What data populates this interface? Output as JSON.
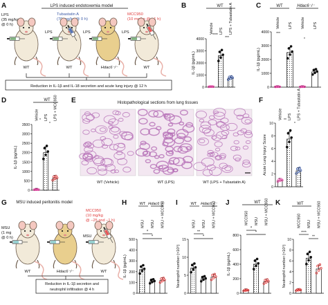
{
  "colors": {
    "red": "#e03a3a",
    "blue": "#3b5aa6",
    "pink": "#e64aa6",
    "black": "#111111",
    "tissue_bg": "#f3e7f1",
    "tissue_stain": "#b56fb6"
  },
  "panelA": {
    "letter": "A",
    "title": "LPS induced endotoxemia model",
    "lps_dose": [
      "LPS",
      "(35 mg/kg",
      "@ 0 h)"
    ],
    "tub_lines": [
      "Tubastatin A",
      "(70 mg/kg @ 0 h)"
    ],
    "mcc_lines": [
      "MCC950",
      "(10 mg/kg @ −1 h)"
    ],
    "lps": "LPS",
    "mice": [
      "WT",
      "WT",
      "Hdac6⁻/⁻",
      "WT"
    ],
    "footer": "Reduction in IL-1β and IL-18 secretion and acute lung injury @ 12 h"
  },
  "panelB": {
    "letter": "B",
    "group": "WT",
    "labels": [
      "Vehicle",
      "LPS",
      "LPS + Tubastatin A"
    ],
    "ylabel": "IL-1β (pg/mL)",
    "sig": [
      "****",
      "***"
    ],
    "chart_data": {
      "type": "bar",
      "categories": [
        "Vehicle",
        "LPS",
        "LPS + Tubastatin A"
      ],
      "values": [
        40,
        2600,
        750
      ],
      "ylim": [
        0,
        4000
      ],
      "yticks": [
        0,
        1000,
        2000,
        3000,
        4000
      ]
    }
  },
  "panelC": {
    "letter": "C",
    "groups": [
      "WT",
      "Hdac6⁻/⁻"
    ],
    "labels": [
      "Vehicle",
      "LPS",
      "Vehicle",
      "LPS"
    ],
    "ylabel": "IL-1β (pg/mL)",
    "sig": [
      "***",
      "*"
    ],
    "chart_data": {
      "type": "bar",
      "categories": [
        "WT Vehicle",
        "WT LPS",
        "Hdac6⁻/⁻ Vehicle",
        "Hdac6⁻/⁻ LPS"
      ],
      "values": [
        30,
        2500,
        30,
        1100
      ],
      "ylim": [
        0,
        4000
      ],
      "yticks": [
        0,
        1000,
        2000,
        3000,
        4000
      ]
    }
  },
  "panelD": {
    "letter": "D",
    "group": "WT",
    "labels": [
      "Vehicle",
      "LPS",
      "LPS + MCC950"
    ],
    "ylabel": "IL-1β (pg/mL)",
    "sig": [
      "*",
      "*"
    ],
    "chart_data": {
      "type": "bar",
      "categories": [
        "Vehicle",
        "LPS",
        "LPS + MCC950"
      ],
      "values": [
        30,
        2000,
        640
      ],
      "ylim": [
        0,
        3500
      ],
      "yticks": [
        0,
        500,
        1000,
        1500,
        2000,
        2500,
        3000,
        3500
      ]
    }
  },
  "panelE": {
    "letter": "E",
    "title": "Histopathological sections from lung tissues",
    "captions": [
      "WT (Vehicle)",
      "WT (LPS)",
      "WT (LPS + Tubastatin A)"
    ]
  },
  "panelF": {
    "letter": "F",
    "labels": [
      "Vehicle",
      "LPS",
      "LPS + Tubastatin A"
    ],
    "ylabel": "Acute Lung Injury Score",
    "sig": [
      "**",
      "*"
    ],
    "chart_data": {
      "type": "bar",
      "categories": [
        "Vehicle",
        "LPS",
        "LPS + Tubastatin A"
      ],
      "values": [
        1,
        7.5,
        2.5
      ],
      "ylim": [
        0,
        10
      ],
      "yticks": [
        0,
        2,
        4,
        6,
        8,
        10
      ]
    }
  },
  "panelG": {
    "letter": "G",
    "title": "MSU induced peritonitis model",
    "msu_lines": [
      "MSU",
      "(1 mg",
      "@ 0 h)"
    ],
    "mcc_lines": [
      "MCC950",
      "(10 mg/kg",
      "@ −25 and −1 h)"
    ],
    "msu": "MSU",
    "mice": [
      "WT",
      "Hdac6⁻/⁻",
      "WT"
    ],
    "footer": [
      "Reduction in IL-1β secretion and",
      "neutrophil infiltration @ 4 h"
    ]
  },
  "panelH": {
    "letter": "H",
    "groups": [
      "WT",
      "Hdac6⁻/⁻"
    ],
    "labels": [
      "MSU",
      "MSU",
      "MSU + MCC950"
    ],
    "ylabel": "IL-1β (pg/mL)",
    "sig": [
      "*",
      "*"
    ],
    "chart_data": {
      "type": "bar",
      "categories": [
        "WT MSU",
        "Hdac6⁻/⁻ MSU",
        "WT MSU + MCC950"
      ],
      "values": [
        220,
        110,
        120
      ],
      "ylim": [
        0,
        500
      ],
      "yticks": [
        0,
        100,
        200,
        300,
        400,
        500
      ]
    }
  },
  "panelI": {
    "letter": "I",
    "groups": [
      "WT",
      "Hdac6⁻/⁻"
    ],
    "labels": [
      "MSU",
      "MSU",
      "MSU + MCC950"
    ],
    "ylabel": "Neutrophil number (×10⁶)",
    "sig": [
      "**",
      "*"
    ],
    "chart_data": {
      "type": "bar",
      "categories": [
        "WT MSU",
        "Hdac6⁻/⁻ MSU",
        "WT MSU + MCC950"
      ],
      "values": [
        7,
        4,
        4.5
      ],
      "ylim": [
        0,
        15
      ],
      "yticks": [
        0,
        5,
        10,
        15
      ]
    }
  },
  "panelJ": {
    "letter": "J",
    "group": "WT",
    "labels": [
      "MCC950",
      "MSU",
      "MSU + MCC950"
    ],
    "ylabel": "IL-1β (pg/mL)",
    "sig": [
      "*",
      "*"
    ],
    "chart_data": {
      "type": "bar",
      "categories": [
        "MCC950",
        "MSU",
        "MSU + MCC950"
      ],
      "values": [
        40,
        400,
        160
      ],
      "ylim": [
        0,
        800
      ],
      "yticks": [
        0,
        200,
        400,
        600,
        800
      ]
    }
  },
  "panelK": {
    "letter": "K",
    "group": "WT",
    "labels": [
      "MCC950",
      "MSU",
      "MSU + MCC950"
    ],
    "ylabel": "Neutrophil number (×10⁶)",
    "sig": [
      "****",
      "**"
    ],
    "chart_data": {
      "type": "bar",
      "categories": [
        "MCC950",
        "MSU",
        "MSU + MCC950"
      ],
      "values": [
        0.6,
        6.5,
        4.5
      ],
      "ylim": [
        0,
        10
      ],
      "yticks": [
        0,
        2,
        4,
        6,
        8,
        10
      ]
    }
  }
}
